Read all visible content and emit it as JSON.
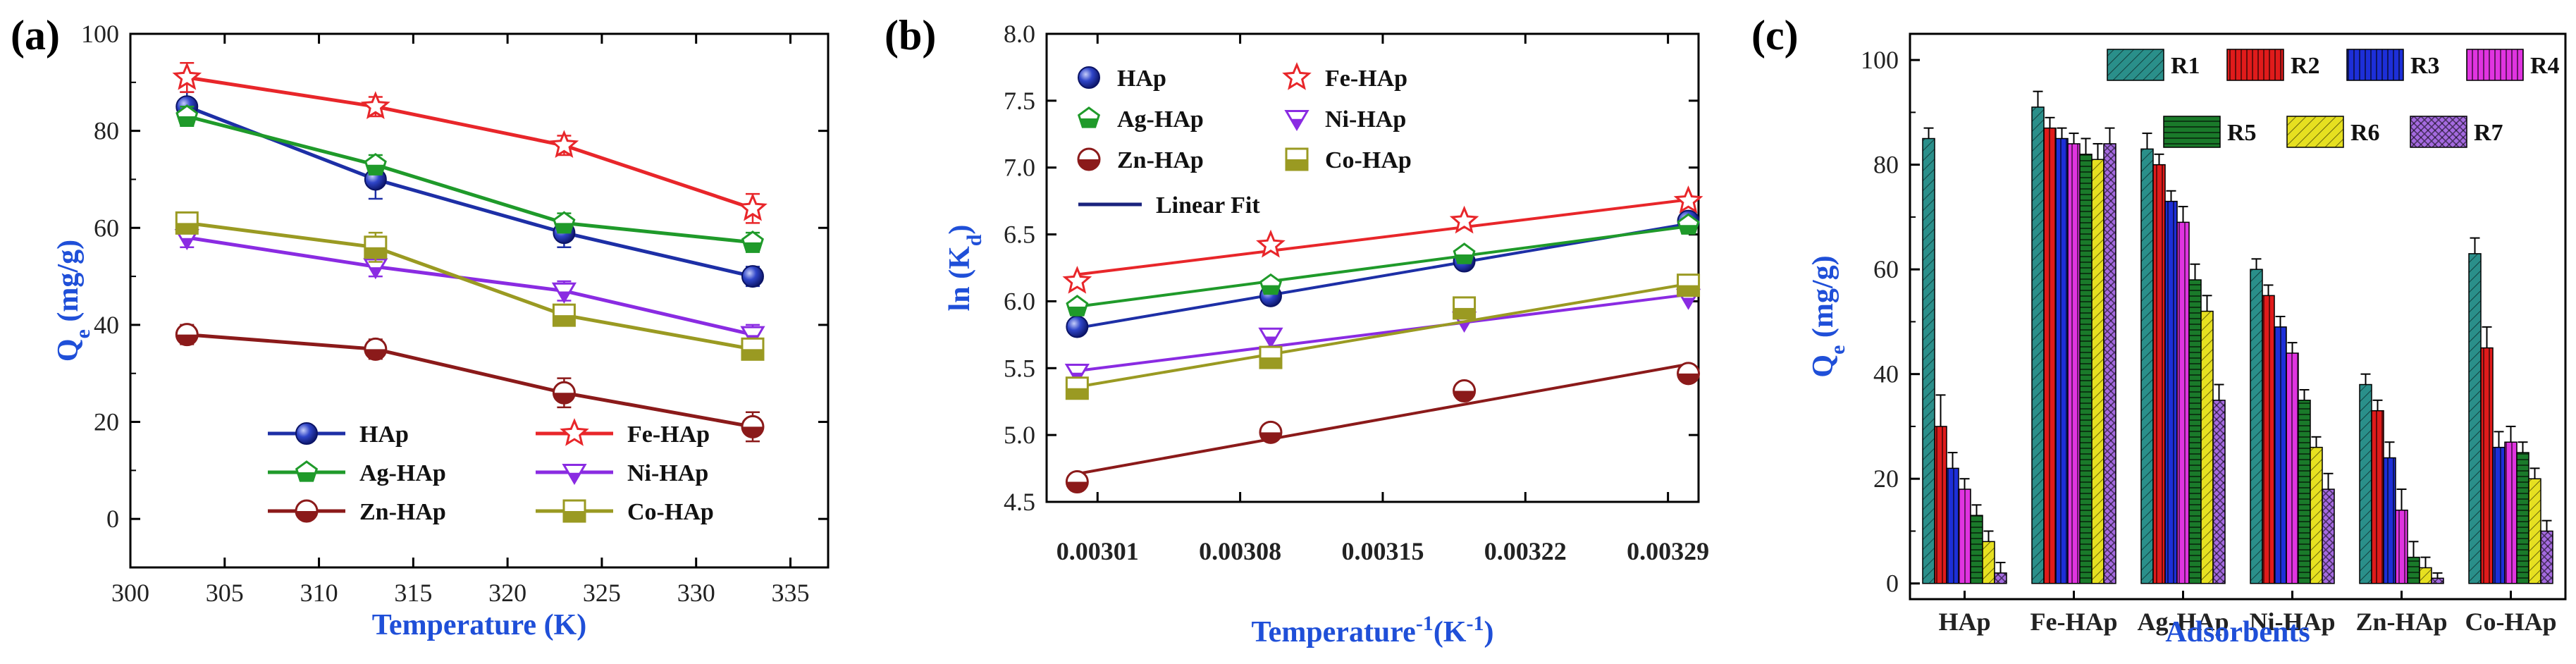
{
  "chart_data": [
    {
      "panel": "(a)",
      "type": "line",
      "xlabel": "Temperature (K)",
      "ylabel_base": "Q",
      "ylabel_sub": "e",
      "ylabel_tail": " (mg/g)",
      "xlim": [
        300,
        337
      ],
      "ylim": [
        -10,
        100
      ],
      "xticks": [
        300,
        305,
        310,
        315,
        320,
        325,
        330,
        335
      ],
      "yticks": [
        0,
        20,
        40,
        60,
        80,
        100
      ],
      "x": [
        303,
        313,
        323,
        333
      ],
      "series": [
        {
          "name": "HAp",
          "color": "#1d2fa6",
          "marker": "sphere",
          "values": [
            85,
            70,
            59,
            50
          ],
          "errors": [
            3,
            4,
            3,
            2
          ]
        },
        {
          "name": "Fe-HAp",
          "color": "#e8262a",
          "marker": "star",
          "values": [
            91,
            85,
            77,
            64
          ],
          "errors": [
            3,
            2,
            2,
            3
          ]
        },
        {
          "name": "Ag-HAp",
          "color": "#1f9a2a",
          "marker": "pentagon",
          "values": [
            83,
            73,
            61,
            57
          ],
          "errors": [
            2,
            2,
            2,
            2
          ]
        },
        {
          "name": "Ni-HAp",
          "color": "#8a2be2",
          "marker": "tri-down",
          "values": [
            58,
            52,
            47,
            38
          ],
          "errors": [
            2,
            2,
            2,
            2
          ]
        },
        {
          "name": "Zn-HAp",
          "color": "#8b1a1a",
          "marker": "half-circle",
          "values": [
            38,
            35,
            26,
            19
          ],
          "errors": [
            2,
            2,
            3,
            3
          ]
        },
        {
          "name": "Co-HAp",
          "color": "#9a9a22",
          "marker": "half-square",
          "values": [
            61,
            56,
            42,
            35
          ],
          "errors": [
            2,
            3,
            2,
            2
          ]
        }
      ]
    },
    {
      "panel": "(b)",
      "type": "scatter",
      "xlabel_base": "Temperature",
      "xlabel_sup": "-1",
      "xlabel_tail": "(K",
      "xlabel_tail_sup": "-1",
      "xlabel_close": ")",
      "ylabel_base": "ln (K",
      "ylabel_sub": "d",
      "ylabel_tail": ")",
      "xlim": [
        0.002985,
        0.003305
      ],
      "ylim": [
        4.5,
        8.0
      ],
      "xticks": [
        0.00301,
        0.00308,
        0.00315,
        0.00322,
        0.00329
      ],
      "xtick_labels": [
        "0.00301",
        "0.00308",
        "0.00315",
        "0.00322",
        "0.00329"
      ],
      "yticks": [
        4.5,
        5.0,
        5.5,
        6.0,
        6.5,
        7.0,
        7.5,
        8.0
      ],
      "ytick_labels": [
        "4.5",
        "5.0",
        "5.5",
        "6.0",
        "6.5",
        "7.0",
        "7.5",
        "8.0"
      ],
      "x": [
        0.003,
        0.003095,
        0.00319,
        0.0033
      ],
      "fit_label": "Linear Fit",
      "fit_color": "#1a237e",
      "series": [
        {
          "name": "HAp",
          "color": "#1d2fa6",
          "marker": "sphere",
          "values": [
            5.81,
            6.04,
            6.3,
            6.6
          ],
          "fit": [
            5.8,
            6.05,
            6.3,
            6.58
          ]
        },
        {
          "name": "Fe-HAp",
          "color": "#e8262a",
          "marker": "star",
          "values": [
            6.15,
            6.42,
            6.6,
            6.75
          ],
          "fit": [
            6.2,
            6.38,
            6.57,
            6.76
          ]
        },
        {
          "name": "Ag-HAp",
          "color": "#1f9a2a",
          "marker": "pentagon",
          "values": [
            5.96,
            6.12,
            6.35,
            6.57
          ],
          "fit": [
            5.96,
            6.15,
            6.35,
            6.56
          ]
        },
        {
          "name": "Ni-HAp",
          "color": "#8a2be2",
          "marker": "tri-down",
          "values": [
            5.47,
            5.74,
            5.86,
            6.03
          ],
          "fit": [
            5.48,
            5.66,
            5.85,
            6.05
          ]
        },
        {
          "name": "Zn-HAp",
          "color": "#8b1a1a",
          "marker": "half-circle",
          "values": [
            4.65,
            5.02,
            5.33,
            5.46
          ],
          "fit": [
            4.71,
            4.97,
            5.24,
            5.53
          ]
        },
        {
          "name": "Co-HAp",
          "color": "#9a9a22",
          "marker": "half-square",
          "values": [
            5.35,
            5.58,
            5.95,
            6.12
          ],
          "fit": [
            5.36,
            5.61,
            5.87,
            6.13
          ]
        }
      ]
    },
    {
      "panel": "(c)",
      "type": "bar",
      "xlabel": "Adsorbents",
      "ylabel_base": "Q",
      "ylabel_sub": "e",
      "ylabel_tail": " (mg/g)",
      "ylim": [
        -3,
        105
      ],
      "yticks": [
        0,
        20,
        40,
        60,
        80,
        100
      ],
      "categories": [
        "HAp",
        "Fe-HAp",
        "Ag-HAp",
        "Ni-HAp",
        "Zn-HAp",
        "Co-HAp"
      ],
      "series": [
        {
          "name": "R1",
          "color": "#2a8f8a",
          "pattern": "diag",
          "values": [
            85,
            91,
            83,
            60,
            38,
            63
          ],
          "errors": [
            2,
            3,
            3,
            2,
            2,
            3
          ]
        },
        {
          "name": "R2",
          "color": "#e01b1b",
          "pattern": "vert",
          "values": [
            30,
            87,
            80,
            55,
            33,
            45
          ],
          "errors": [
            6,
            2,
            2,
            2,
            2,
            4
          ]
        },
        {
          "name": "R3",
          "color": "#1d2fd8",
          "pattern": "vert",
          "values": [
            22,
            85,
            73,
            49,
            24,
            26
          ],
          "errors": [
            3,
            2,
            2,
            2,
            3,
            3
          ]
        },
        {
          "name": "R4",
          "color": "#e034e0",
          "pattern": "vert",
          "values": [
            18,
            84,
            69,
            44,
            14,
            27
          ],
          "errors": [
            2,
            2,
            3,
            2,
            4,
            3
          ]
        },
        {
          "name": "R5",
          "color": "#1a7a2a",
          "pattern": "horiz",
          "values": [
            13,
            82,
            58,
            35,
            5,
            25
          ],
          "errors": [
            2,
            3,
            3,
            2,
            3,
            2
          ]
        },
        {
          "name": "R6",
          "color": "#e6e020",
          "pattern": "diag",
          "values": [
            8,
            81,
            52,
            26,
            3,
            20
          ],
          "errors": [
            2,
            3,
            3,
            2,
            2,
            2
          ]
        },
        {
          "name": "R7",
          "color": "#a56ae0",
          "pattern": "cross",
          "values": [
            2,
            84,
            35,
            18,
            1,
            10
          ],
          "errors": [
            2,
            3,
            3,
            3,
            1,
            2
          ]
        }
      ]
    }
  ]
}
